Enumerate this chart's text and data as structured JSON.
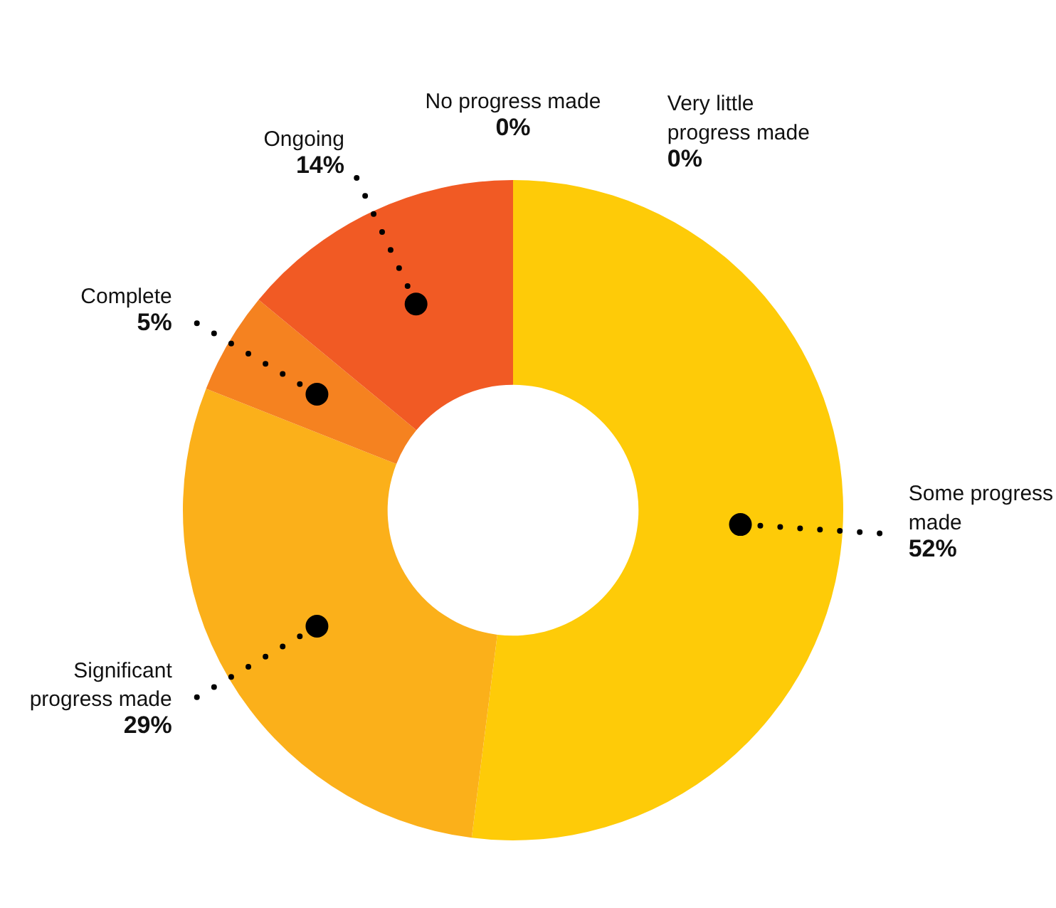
{
  "chart_data": {
    "type": "donut",
    "categories": [
      "No progress made",
      "Very little progress made",
      "Some progress made",
      "Significant progress made",
      "Complete",
      "Ongoing"
    ],
    "values": [
      0,
      0,
      52,
      29,
      5,
      14
    ],
    "colors": [
      "#e2231a",
      "#ffe14d",
      "#fecb08",
      "#fbb01a",
      "#f58220",
      "#f15a24"
    ],
    "value_labels": [
      "0%",
      "0%",
      "52%",
      "29%",
      "5%",
      "14%"
    ]
  }
}
